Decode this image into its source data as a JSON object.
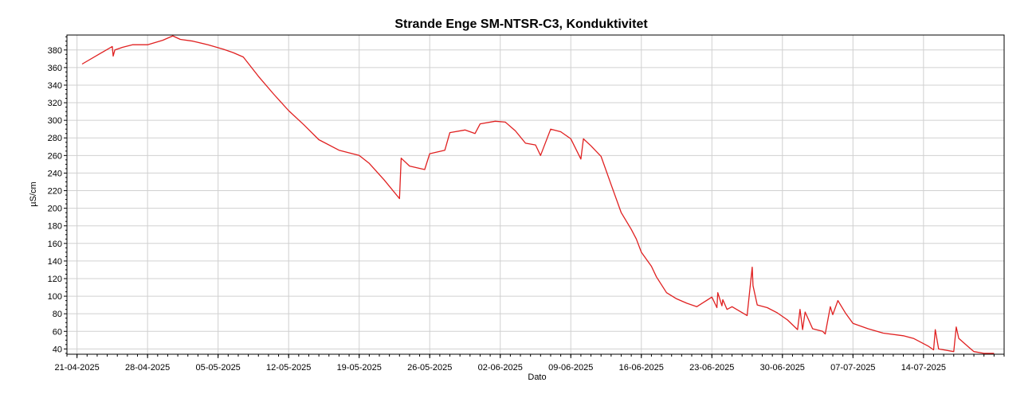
{
  "chart_data": {
    "type": "line",
    "title": "Strande Enge SM-NTSR-C3, Konduktivitet",
    "xlabel": "Dato",
    "ylabel": "µS/cm",
    "x_range": [
      "2025-04-20",
      "2025-07-22"
    ],
    "ylim": [
      34,
      397
    ],
    "grid": true,
    "legend": "none",
    "line_color": "#e02020",
    "x_ticks": [
      "21-04-2025",
      "28-04-2025",
      "05-05-2025",
      "12-05-2025",
      "19-05-2025",
      "26-05-2025",
      "02-06-2025",
      "09-06-2025",
      "16-06-2025",
      "23-06-2025",
      "30-06-2025",
      "07-07-2025",
      "14-07-2025"
    ],
    "y_ticks": [
      40,
      60,
      80,
      100,
      120,
      140,
      160,
      180,
      200,
      220,
      240,
      260,
      280,
      300,
      320,
      340,
      360,
      380
    ],
    "series": [
      {
        "x": [
          "2025-04-21 12:00",
          "2025-04-24 12:00",
          "2025-04-24 14:00",
          "2025-04-24 18:00",
          "2025-04-25 12:00",
          "2025-04-26 12:00",
          "2025-04-28 00:00",
          "2025-04-29 12:00",
          "2025-04-30 12:00",
          "2025-05-01 06:00",
          "2025-05-02 12:00",
          "2025-05-04 00:00",
          "2025-05-05 12:00",
          "2025-05-06 12:00",
          "2025-05-07 12:00",
          "2025-05-09 00:00",
          "2025-05-10 12:00",
          "2025-05-12 00:00",
          "2025-05-13 12:00",
          "2025-05-15 00:00",
          "2025-05-17 00:00",
          "2025-05-19 00:00",
          "2025-05-20 00:00",
          "2025-05-21 12:00",
          "2025-05-23 00:00",
          "2025-05-23 04:00",
          "2025-05-24 00:00",
          "2025-05-25 12:00",
          "2025-05-26 00:00",
          "2025-05-27 12:00",
          "2025-05-28 00:00",
          "2025-05-29 12:00",
          "2025-05-30 12:00",
          "2025-05-31 00:00",
          "2025-06-01 12:00",
          "2025-06-02 12:00",
          "2025-06-03 12:00",
          "2025-06-04 12:00",
          "2025-06-05 12:00",
          "2025-06-06 00:00",
          "2025-06-07 00:00",
          "2025-06-08 00:00",
          "2025-06-09 00:00",
          "2025-06-10 00:00",
          "2025-06-10 06:00",
          "2025-06-11 00:00",
          "2025-06-12 00:00",
          "2025-06-13 00:00",
          "2025-06-14 00:00",
          "2025-06-15 00:00",
          "2025-06-15 12:00",
          "2025-06-16 00:00",
          "2025-06-17 00:00",
          "2025-06-17 12:00",
          "2025-06-18 12:00",
          "2025-06-19 12:00",
          "2025-06-20 12:00",
          "2025-06-21 12:00",
          "2025-06-23 00:00",
          "2025-06-23 12:00",
          "2025-06-23 14:00",
          "2025-06-24 00:00",
          "2025-06-24 02:00",
          "2025-06-24 12:00",
          "2025-06-25 00:00",
          "2025-06-26 12:00",
          "2025-06-27 00:00",
          "2025-06-27 02:00",
          "2025-06-27 12:00",
          "2025-06-28 12:00",
          "2025-06-29 12:00",
          "2025-06-30 12:00",
          "2025-07-01 12:00",
          "2025-07-01 18:00",
          "2025-07-02 00:00",
          "2025-07-02 06:00",
          "2025-07-03 00:00",
          "2025-07-04 00:00",
          "2025-07-04 06:00",
          "2025-07-04 18:00",
          "2025-07-05 00:00",
          "2025-07-05 12:00",
          "2025-07-06 06:00",
          "2025-07-07 00:00",
          "2025-07-08 12:00",
          "2025-07-10 00:00",
          "2025-07-12 00:00",
          "2025-07-13 00:00",
          "2025-07-14 12:00",
          "2025-07-15 00:00",
          "2025-07-15 04:00",
          "2025-07-15 12:00",
          "2025-07-17 00:00",
          "2025-07-17 06:00",
          "2025-07-17 12:00",
          "2025-07-18 12:00",
          "2025-07-19 00:00",
          "2025-07-20 00:00",
          "2025-07-21 00:00"
        ],
        "y": [
          364,
          384,
          373,
          380,
          383,
          386,
          386,
          391,
          396,
          392,
          390,
          386,
          381,
          377,
          372,
          350,
          330,
          311,
          295,
          278,
          266,
          260,
          251,
          232,
          211,
          257,
          248,
          244,
          262,
          266,
          286,
          289,
          285,
          296,
          299,
          298,
          288,
          274,
          272,
          260,
          290,
          287,
          279,
          256,
          279,
          271,
          259,
          227,
          195,
          176,
          165,
          150,
          134,
          122,
          104,
          97,
          92,
          88,
          99,
          87,
          104,
          89,
          96,
          85,
          88,
          78,
          133,
          112,
          90,
          87,
          81,
          73,
          62,
          85,
          62,
          82,
          63,
          60,
          57,
          88,
          79,
          95,
          81,
          69,
          63,
          58,
          55,
          52,
          43,
          39,
          62,
          40,
          37,
          65,
          52,
          42,
          37,
          35,
          35
        ]
      }
    ]
  }
}
